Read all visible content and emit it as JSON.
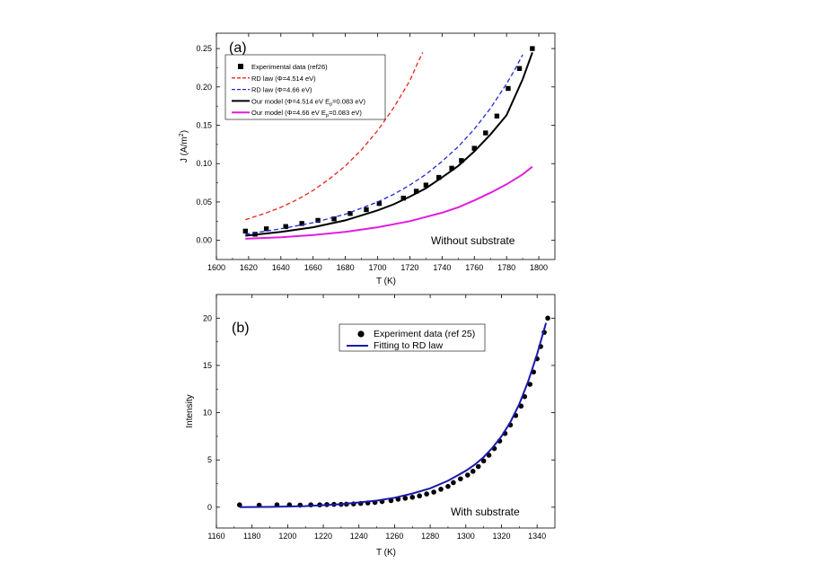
{
  "figure": {
    "panels": [
      {
        "panel_label": "(a)",
        "xlabel": "T (K)",
        "ylabel": "J (A/m²)",
        "annotation": "Without substrate",
        "legend": [
          {
            "text": "Experimental data (ref26)",
            "symbol": "square",
            "color": "#000000"
          },
          {
            "text": "RD law (Φ=4.514 eV)",
            "symbol": "dash",
            "color": "#e8261c"
          },
          {
            "text": "RD law (Φ=4.66 eV)",
            "symbol": "dash",
            "color": "#1f2bd6"
          },
          {
            "text": "Our model (Φ=4.514 eV E",
            "sub": "p",
            "tail": "=0.083 eV)",
            "symbol": "line",
            "color": "#000000"
          },
          {
            "text": "Our model (Φ=4.66 eV E",
            "sub": "p",
            "tail": "=0.083 eV)",
            "symbol": "line",
            "color": "#e21ee0"
          }
        ]
      },
      {
        "panel_label": "(b)",
        "xlabel": "T (K)",
        "ylabel": "Intensity",
        "annotation": "With substrate",
        "legend": [
          {
            "text": "Experiment data (ref 25)",
            "symbol": "circle",
            "color": "#000000"
          },
          {
            "text": "Fitting to RD law",
            "symbol": "line",
            "color": "#1a1aa8"
          }
        ]
      }
    ]
  },
  "chart_data": [
    {
      "type": "scatter",
      "panel": "(a)",
      "xlabel": "T (K)",
      "ylabel": "J (A/m²)",
      "xlim": [
        1600,
        1810
      ],
      "ylim": [
        -0.025,
        0.27
      ],
      "xticks": [
        1600,
        1620,
        1640,
        1660,
        1680,
        1700,
        1720,
        1740,
        1760,
        1780,
        1800
      ],
      "yticks": [
        0.0,
        0.05,
        0.1,
        0.15,
        0.2,
        0.25
      ],
      "ytick_labels": [
        "0.00",
        "0.05",
        "0.10",
        "0.15",
        "0.20",
        "0.25"
      ],
      "grid": false,
      "legend_position": "top-left",
      "series": [
        {
          "name": "Experimental data (ref26)",
          "kind": "markers",
          "marker": "square",
          "color": "#000000",
          "x": [
            1618,
            1624,
            1631,
            1643,
            1653,
            1663,
            1673,
            1683,
            1693,
            1701,
            1716,
            1724,
            1730,
            1738,
            1746,
            1752,
            1760,
            1767,
            1774,
            1781,
            1788,
            1796
          ],
          "y": [
            0.012,
            0.008,
            0.015,
            0.018,
            0.022,
            0.026,
            0.028,
            0.035,
            0.04,
            0.048,
            0.055,
            0.064,
            0.072,
            0.082,
            0.094,
            0.104,
            0.12,
            0.14,
            0.162,
            0.198,
            0.224,
            0.25
          ]
        },
        {
          "name": "RD law (Φ=4.514 eV)",
          "kind": "line",
          "dash": true,
          "color": "#e8261c",
          "x": [
            1618,
            1630,
            1640,
            1650,
            1660,
            1670,
            1680,
            1690,
            1700,
            1710,
            1720,
            1725,
            1728
          ],
          "y": [
            0.027,
            0.035,
            0.043,
            0.053,
            0.065,
            0.08,
            0.097,
            0.118,
            0.143,
            0.173,
            0.208,
            0.232,
            0.245
          ]
        },
        {
          "name": "RD law (Φ=4.66 eV)",
          "kind": "line",
          "dash": true,
          "color": "#1f2bd6",
          "x": [
            1618,
            1640,
            1660,
            1680,
            1700,
            1710,
            1720,
            1730,
            1740,
            1750,
            1760,
            1770,
            1780,
            1785,
            1790
          ],
          "y": [
            0.008,
            0.015,
            0.023,
            0.034,
            0.05,
            0.06,
            0.072,
            0.086,
            0.103,
            0.122,
            0.145,
            0.172,
            0.204,
            0.222,
            0.242
          ]
        },
        {
          "name": "Our model (Φ=4.514 eV Ep=0.083 eV)",
          "kind": "line",
          "dash": false,
          "color": "#000000",
          "x": [
            1618,
            1640,
            1660,
            1680,
            1700,
            1710,
            1720,
            1730,
            1740,
            1750,
            1760,
            1770,
            1780,
            1790,
            1796
          ],
          "y": [
            0.006,
            0.011,
            0.017,
            0.026,
            0.039,
            0.047,
            0.057,
            0.068,
            0.082,
            0.097,
            0.116,
            0.138,
            0.163,
            0.21,
            0.245
          ]
        },
        {
          "name": "Our model (Φ=4.66 eV Ep=0.083 eV)",
          "kind": "line",
          "dash": false,
          "color": "#e21ee0",
          "x": [
            1618,
            1640,
            1660,
            1680,
            1700,
            1720,
            1740,
            1750,
            1760,
            1770,
            1780,
            1790,
            1796
          ],
          "y": [
            0.002,
            0.004,
            0.007,
            0.011,
            0.017,
            0.025,
            0.036,
            0.043,
            0.052,
            0.062,
            0.073,
            0.086,
            0.096
          ]
        }
      ]
    },
    {
      "type": "scatter",
      "panel": "(b)",
      "xlabel": "T (K)",
      "ylabel": "Intensity",
      "xlim": [
        1160,
        1350
      ],
      "ylim": [
        -2.2,
        22.5
      ],
      "xticks": [
        1160,
        1180,
        1200,
        1220,
        1240,
        1260,
        1280,
        1300,
        1320,
        1340
      ],
      "yticks": [
        0,
        5,
        10,
        15,
        20
      ],
      "ytick_labels": [
        "0",
        "5",
        "10",
        "15",
        "20"
      ],
      "grid": false,
      "legend_position": "top-center",
      "series": [
        {
          "name": "Experiment data (ref 25)",
          "kind": "markers",
          "marker": "circle",
          "color": "#000000",
          "x": [
            1173,
            1184,
            1194,
            1201,
            1207,
            1213,
            1218,
            1222,
            1226,
            1230,
            1233,
            1237,
            1241,
            1245,
            1249,
            1253,
            1258,
            1262,
            1266,
            1270,
            1274,
            1278,
            1282,
            1286,
            1290,
            1293,
            1297,
            1301,
            1304,
            1307,
            1310,
            1313,
            1316,
            1319,
            1322,
            1325,
            1328,
            1331,
            1333,
            1336,
            1338,
            1340,
            1342,
            1344,
            1346
          ],
          "y": [
            0.25,
            0.22,
            0.25,
            0.25,
            0.22,
            0.25,
            0.25,
            0.28,
            0.3,
            0.3,
            0.32,
            0.35,
            0.4,
            0.45,
            0.5,
            0.6,
            0.7,
            0.85,
            0.95,
            1.05,
            1.2,
            1.4,
            1.6,
            1.9,
            2.2,
            2.6,
            3.0,
            3.4,
            3.8,
            4.3,
            4.9,
            5.5,
            6.2,
            7.0,
            7.8,
            8.7,
            9.7,
            10.7,
            11.7,
            13.0,
            14.3,
            15.7,
            17.0,
            18.5,
            20.0
          ]
        },
        {
          "name": "Fitting to RD law",
          "kind": "line",
          "dash": false,
          "color": "#1a1aa8",
          "x": [
            1173,
            1190,
            1210,
            1230,
            1250,
            1260,
            1270,
            1280,
            1290,
            1300,
            1305,
            1310,
            1315,
            1320,
            1325,
            1330,
            1335,
            1340,
            1345
          ],
          "y": [
            0.0,
            0.03,
            0.12,
            0.32,
            0.7,
            1.0,
            1.45,
            2.0,
            2.8,
            3.85,
            4.5,
            5.3,
            6.3,
            7.5,
            9.0,
            10.9,
            13.3,
            16.2,
            19.5
          ]
        }
      ]
    }
  ]
}
